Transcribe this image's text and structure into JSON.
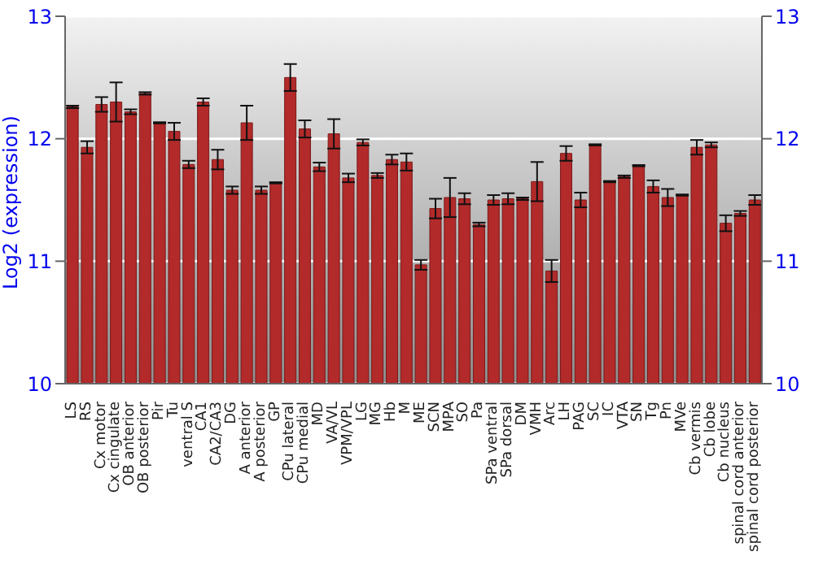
{
  "chart_data": {
    "type": "bar",
    "ylabel": "Log2 (expression)",
    "categories": [
      "LS",
      "RS",
      "Cx motor",
      "Cx cingulate",
      "OB anterior",
      "OB posterior",
      "Pir",
      "Tu",
      "ventral S",
      "CA1",
      "CA2/CA3",
      "DG",
      "A anterior",
      "A posterior",
      "GP",
      "CPu lateral",
      "CPu medial",
      "MD",
      "VA/VL",
      "VPM/VPL",
      "LG",
      "MG",
      "Hb",
      "M",
      "ME",
      "SCN",
      "MPA",
      "SO",
      "Pa",
      "SPa ventral",
      "SPa dorsal",
      "DM",
      "VMH",
      "Arc",
      "LH",
      "PAG",
      "SC",
      "IC",
      "VTA",
      "SN",
      "Tg",
      "Pn",
      "MVe",
      "Cb vermis",
      "Cb lobe",
      "Cb nucleus",
      "spinal cord anterior",
      "spinal cord posterior"
    ],
    "values": [
      12.26,
      11.93,
      12.28,
      12.3,
      12.22,
      12.37,
      12.13,
      12.06,
      11.79,
      12.3,
      11.83,
      11.58,
      12.13,
      11.58,
      11.64,
      12.5,
      12.08,
      11.77,
      12.04,
      11.68,
      11.97,
      11.7,
      11.83,
      11.81,
      10.97,
      11.43,
      11.52,
      11.51,
      11.3,
      11.5,
      11.51,
      11.51,
      11.65,
      10.92,
      11.88,
      11.5,
      11.95,
      11.65,
      11.69,
      11.78,
      11.61,
      11.52,
      11.54,
      11.93,
      11.95,
      11.31,
      11.39,
      11.5
    ],
    "errors": [
      0.01,
      0.05,
      0.06,
      0.16,
      0.02,
      0.01,
      0.005,
      0.07,
      0.03,
      0.03,
      0.08,
      0.03,
      0.14,
      0.03,
      0.005,
      0.11,
      0.07,
      0.035,
      0.12,
      0.035,
      0.025,
      0.02,
      0.04,
      0.07,
      0.04,
      0.08,
      0.16,
      0.045,
      0.015,
      0.04,
      0.045,
      0.01,
      0.16,
      0.09,
      0.06,
      0.06,
      0.005,
      0.005,
      0.01,
      0.005,
      0.05,
      0.07,
      0.005,
      0.06,
      0.02,
      0.065,
      0.02,
      0.04
    ],
    "color": "#b22a2a",
    "ylim": [
      10,
      13
    ],
    "yticks": [
      10,
      11,
      12,
      13
    ],
    "y2lim": [
      10,
      13
    ],
    "y2ticks": [
      10,
      11,
      12,
      13
    ],
    "grid": "y"
  }
}
